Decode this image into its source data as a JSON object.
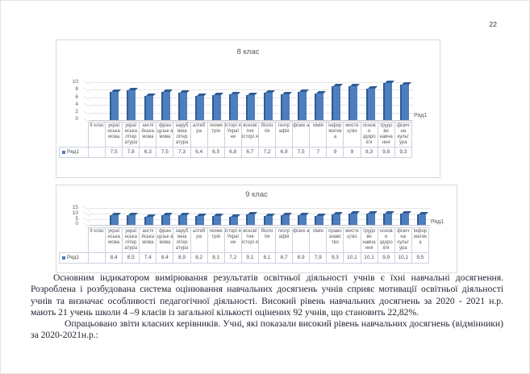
{
  "page": {
    "number": "22"
  },
  "colors": {
    "bar_front": "#4d7ebd",
    "bar_dark": "#2e5c94",
    "axis_text": "#595959",
    "table_border": "#c9d2de",
    "grid": "#e4e4e4",
    "chart_border": "#d9d9d9",
    "body_text": "#232333"
  },
  "charts": [
    {
      "title": "8 клас",
      "legend": "Ряд1",
      "row_label": "Ряд1",
      "y_max": 10,
      "y_ticks_desc": [
        "10",
        "8",
        "6",
        "4",
        "2",
        "0"
      ],
      "columns": [
        {
          "label": "8 клас",
          "display": ""
        },
        {
          "label": "украї нська мова",
          "display": "7,5",
          "value": 7.5
        },
        {
          "label": "украї нська літер атура",
          "display": "7,8",
          "value": 7.8
        },
        {
          "label": "англі йська мова",
          "display": "6,3",
          "value": 6.3
        },
        {
          "label": "фран цузьк а мова",
          "display": "7,5",
          "value": 7.5
        },
        {
          "label": "заруб іжна літер атура",
          "display": "7,3",
          "value": 7.3
        },
        {
          "label": "алгеб ра",
          "display": "6,4",
          "value": 6.4
        },
        {
          "label": "геоме трія",
          "display": "6,5",
          "value": 6.5
        },
        {
          "label": "історі я Украї ни",
          "display": "6,8",
          "value": 6.8
        },
        {
          "label": "всесві тня історі я",
          "display": "6,7",
          "value": 6.7
        },
        {
          "label": "біоло гія",
          "display": "7,2",
          "value": 7.2
        },
        {
          "label": "геогр афія",
          "display": "6,9",
          "value": 6.9
        },
        {
          "label": "фізик а",
          "display": "7,5",
          "value": 7.5
        },
        {
          "label": "хімія",
          "display": "7",
          "value": 7
        },
        {
          "label": "інфор матик а",
          "display": "9",
          "value": 9
        },
        {
          "label": "мисте цтво",
          "display": "9",
          "value": 9
        },
        {
          "label": "основ и здоро в'я",
          "display": "8,3",
          "value": 8.3
        },
        {
          "label": "трудо ве навча ння",
          "display": "9,8",
          "value": 9.8
        },
        {
          "label": "фізич на культ ура",
          "display": "9,3",
          "value": 9.3
        }
      ]
    },
    {
      "title": "9 клас",
      "legend": "Ряд1",
      "row_label": "Ряд1",
      "y_max": 15,
      "y_ticks_desc": [
        "15",
        "10",
        "5",
        "0"
      ],
      "columns": [
        {
          "label": "9 клас",
          "display": ""
        },
        {
          "label": "украї нська мова",
          "display": "8,4",
          "value": 8.4
        },
        {
          "label": "украї нська літер атура",
          "display": "8,5",
          "value": 8.5
        },
        {
          "label": "англі йська мова",
          "display": "7,4",
          "value": 7.4
        },
        {
          "label": "фран цузьк а мова",
          "display": "8,4",
          "value": 8.4
        },
        {
          "label": "заруб іжна літер атура",
          "display": "8,9",
          "value": 8.9
        },
        {
          "label": "алгеб ра",
          "display": "8,2",
          "value": 8.2
        },
        {
          "label": "геоме трія",
          "display": "8,1",
          "value": 8.1
        },
        {
          "label": "історі я Украї ни",
          "display": "7,2",
          "value": 7.2
        },
        {
          "label": "всесві тня історі я",
          "display": "9,1",
          "value": 9.1
        },
        {
          "label": "біоло гія",
          "display": "8,1",
          "value": 8.1
        },
        {
          "label": "геогр афія",
          "display": "8,7",
          "value": 8.7
        },
        {
          "label": "фізик а",
          "display": "8,9",
          "value": 8.9
        },
        {
          "label": "хімія",
          "display": "7,9",
          "value": 7.9
        },
        {
          "label": "право знавс тво",
          "display": "9,3",
          "value": 9.3
        },
        {
          "label": "мисте цтво",
          "display": "10,1",
          "value": 10.1
        },
        {
          "label": "трудо ве навча ння",
          "display": "10,1",
          "value": 10.1
        },
        {
          "label": "основ и здоро в'я",
          "display": "9,9",
          "value": 9.9
        },
        {
          "label": "фізич на культ ура",
          "display": "10,1",
          "value": 10.1
        },
        {
          "label": "інфор матик а",
          "display": "9,5",
          "value": 9.5
        }
      ]
    }
  ],
  "chart_data": [
    {
      "type": "bar",
      "style": "3d-column",
      "title": "8 клас",
      "categories": [
        "8 клас",
        "українська мова",
        "українська література",
        "англійська мова",
        "французька мова",
        "зарубіжна література",
        "алгебра",
        "геометрія",
        "історія України",
        "всесвітня історія",
        "біологія",
        "географія",
        "фізика",
        "хімія",
        "інформатика",
        "мистецтво",
        "основи здоров'я",
        "трудове навчання",
        "фізична культура"
      ],
      "series": [
        {
          "name": "Ряд1",
          "values": [
            null,
            7.5,
            7.8,
            6.3,
            7.5,
            7.3,
            6.4,
            6.5,
            6.8,
            6.7,
            7.2,
            6.9,
            7.5,
            7,
            9,
            9,
            8.3,
            9.8,
            9.3
          ]
        }
      ],
      "ylim": [
        0,
        10
      ],
      "y_ticks": [
        0,
        2,
        4,
        6,
        8,
        10
      ],
      "legend_position": "right",
      "data_table_shown": true
    },
    {
      "type": "bar",
      "style": "3d-column",
      "title": "9 клас",
      "categories": [
        "9 клас",
        "українська мова",
        "українська література",
        "англійська мова",
        "французька мова",
        "зарубіжна література",
        "алгебра",
        "геометрія",
        "історія України",
        "всесвітня історія",
        "біологія",
        "географія",
        "фізика",
        "хімія",
        "правознавство",
        "мистецтво",
        "трудове навчання",
        "основи здоров'я",
        "фізична культура",
        "інформатика"
      ],
      "series": [
        {
          "name": "Ряд1",
          "values": [
            null,
            8.4,
            8.5,
            7.4,
            8.4,
            8.9,
            8.2,
            8.1,
            7.2,
            9.1,
            8.1,
            8.7,
            8.9,
            7.9,
            9.3,
            10.1,
            10.1,
            9.9,
            10.1,
            9.5
          ]
        }
      ],
      "ylim": [
        0,
        15
      ],
      "y_ticks": [
        0,
        5,
        10,
        15
      ],
      "legend_position": "right",
      "data_table_shown": true
    }
  ],
  "paragraphs": [
    {
      "text": "Основним індикатором вимірювання результатів освітньої діяльності учнів є їхні навчальні досягнення. Розроблена і розбудована система оцінювання навчальних досягнень учнів сприяє мотивації освітньої діяльності учнів та визначає особливості педагогічної діяльності. Високий рівень навчальних досягнень за  2020 - 2021 н.р. мають  21 учень школи 4 –9 класів із загальної кількості оцінених 92 учнів, що становить 22,82%."
    },
    {
      "text": "Опрацьовано звіти класних керівників. Учні, які показали високий рівень навчальних досягнень (відмінники) за 2020-2021н.р.:"
    }
  ]
}
